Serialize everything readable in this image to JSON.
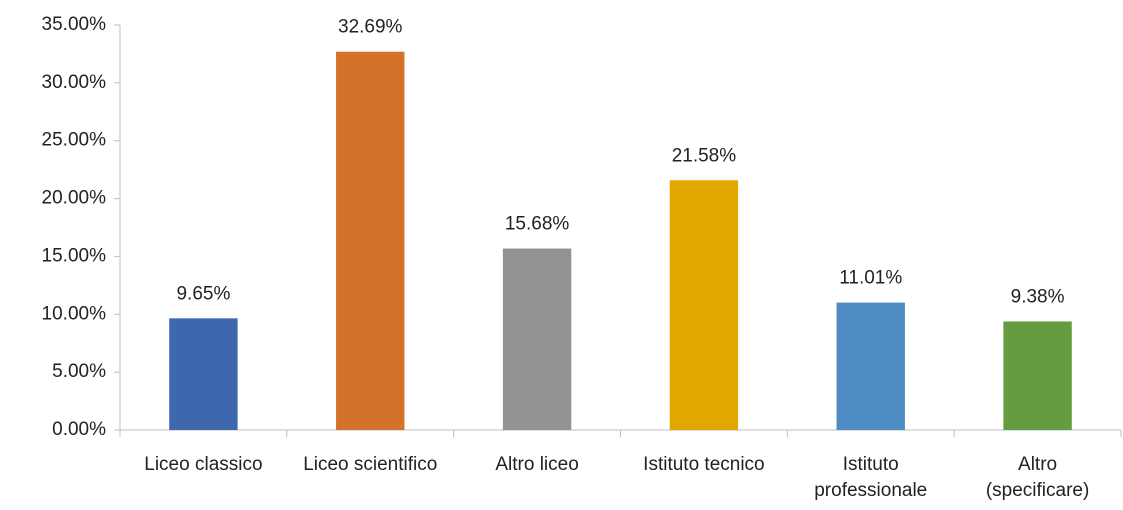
{
  "chart_data": {
    "type": "bar",
    "categories": [
      "Liceo classico",
      "Liceo scientifico",
      "Altro liceo",
      "Istituto tecnico",
      "Istituto professionale",
      "Altro (specificare)"
    ],
    "values": [
      9.65,
      32.69,
      15.68,
      21.58,
      11.01,
      9.38
    ],
    "value_labels": [
      "9.65%",
      "32.69%",
      "15.68%",
      "21.58%",
      "11.01%",
      "9.38%"
    ],
    "colors": [
      "#3f67ae",
      "#d4722c",
      "#939393",
      "#e2a800",
      "#4f8cc4",
      "#659c3f"
    ],
    "ylim": [
      0,
      35
    ],
    "yticks": [
      {
        "value": 0,
        "label": "0.00%"
      },
      {
        "value": 5,
        "label": "5.00%"
      },
      {
        "value": 10,
        "label": "10.00%"
      },
      {
        "value": 15,
        "label": "15.00%"
      },
      {
        "value": 20,
        "label": "20.00%"
      },
      {
        "value": 25,
        "label": "25.00%"
      },
      {
        "value": 30,
        "label": "30.00%"
      },
      {
        "value": 35,
        "label": "35.00%"
      }
    ],
    "grid": false
  }
}
